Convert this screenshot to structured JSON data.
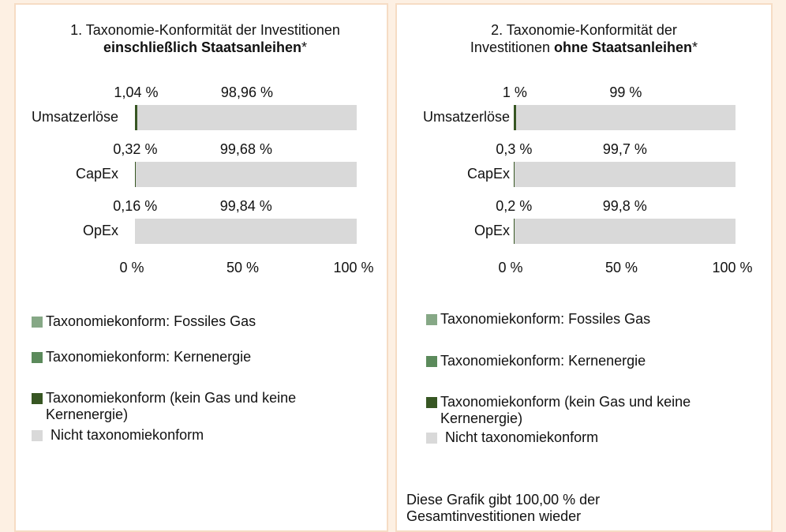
{
  "chart_data": [
    {
      "type": "stacked-bar-horizontal",
      "title_lines": [
        [
          {
            "text": "1. Taxonomie-Konformität der Investitionen",
            "bold": false
          }
        ],
        [
          {
            "text": "einschließlich Staatsanleihen",
            "bold": true
          },
          {
            "text": "*",
            "bold": false
          }
        ]
      ],
      "categories": [
        "Umsatzerlöse",
        "CapEx",
        "OpEx"
      ],
      "series": [
        {
          "name": "Taxonomiekonform: Fossiles Gas",
          "color": "#86a886",
          "values": [
            0,
            0,
            0
          ]
        },
        {
          "name": "Taxonomiekonform: Kernenergie",
          "color": "#5b8a5b",
          "values": [
            0,
            0,
            0
          ]
        },
        {
          "name": "Taxonomiekonform (kein Gas und keine Kernenergie)",
          "color": "#375623",
          "values": [
            1.04,
            0.32,
            0.16
          ],
          "value_labels": [
            "1,04 %",
            "0,32 %",
            "0,16 %"
          ]
        },
        {
          "name": "Nicht taxonomiekonform",
          "color": "#d9d9d9",
          "values": [
            98.96,
            99.68,
            99.84
          ],
          "value_labels": [
            "98,96 %",
            "99,68 %",
            "99,84 %"
          ]
        }
      ],
      "xlim": [
        0,
        100
      ],
      "xticks": [
        {
          "value": 0,
          "label": "0 %"
        },
        {
          "value": 50,
          "label": "50 %"
        },
        {
          "value": 100,
          "label": "100 %"
        }
      ]
    },
    {
      "type": "stacked-bar-horizontal",
      "title_lines": [
        [
          {
            "text": "2. Taxonomie-Konformität der",
            "bold": false
          }
        ],
        [
          {
            "text": "Investitionen ",
            "bold": false
          },
          {
            "text": "ohne Staatsanleihen",
            "bold": true
          },
          {
            "text": "*",
            "bold": false
          }
        ]
      ],
      "categories": [
        "Umsatzerlöse",
        "CapEx",
        "OpEx"
      ],
      "series": [
        {
          "name": "Taxonomiekonform: Fossiles Gas",
          "color": "#86a886",
          "values": [
            0,
            0,
            0
          ]
        },
        {
          "name": "Taxonomiekonform: Kernenergie",
          "color": "#5b8a5b",
          "values": [
            0,
            0,
            0
          ]
        },
        {
          "name": "Taxonomiekonform (kein Gas und keine Kernenergie)",
          "color": "#375623",
          "values": [
            1,
            0.3,
            0.2
          ],
          "value_labels": [
            "1 %",
            "0,3 %",
            "0,2 %"
          ]
        },
        {
          "name": "Nicht taxonomiekonform",
          "color": "#d9d9d9",
          "values": [
            99,
            99.7,
            99.8
          ],
          "value_labels": [
            "99 %",
            "99,7 %",
            "99,8 %"
          ]
        }
      ],
      "xlim": [
        0,
        100
      ],
      "xticks": [
        {
          "value": 0,
          "label": "0 %"
        },
        {
          "value": 50,
          "label": "50 %"
        },
        {
          "value": 100,
          "label": "100 %"
        }
      ],
      "note": "Diese Grafik gibt 100,00 % der Gesamtinvestitionen wieder"
    }
  ]
}
